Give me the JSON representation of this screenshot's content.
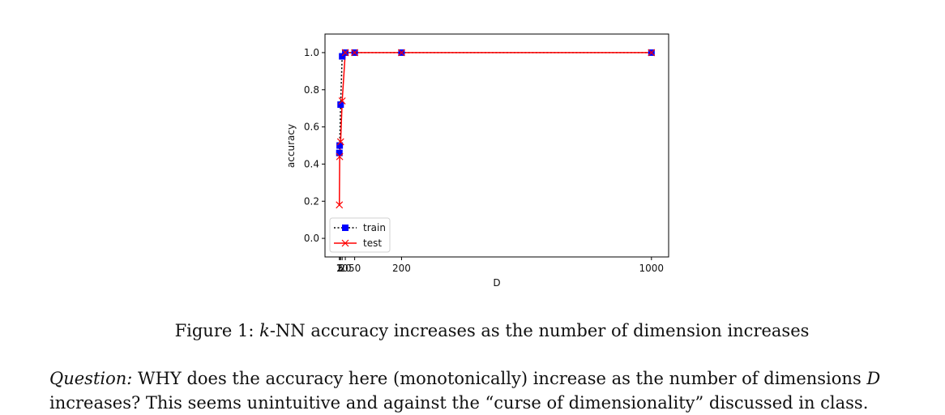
{
  "chart_data": {
    "type": "line",
    "title": "",
    "xlabel": "D",
    "ylabel": "accuracy",
    "xlim": [
      -45,
      1055
    ],
    "ylim": [
      -0.1,
      1.1
    ],
    "xticks": [
      {
        "value": 1,
        "label": "1"
      },
      {
        "value": 2,
        "label": "2"
      },
      {
        "value": 5,
        "label": "5"
      },
      {
        "value": 10,
        "label": "10"
      },
      {
        "value": 20,
        "label": "20"
      },
      {
        "value": 50,
        "label": "50"
      },
      {
        "value": 200,
        "label": "200"
      },
      {
        "value": 1000,
        "label": "1000"
      }
    ],
    "yticks": [
      {
        "value": 0.0,
        "label": "0.0"
      },
      {
        "value": 0.2,
        "label": "0.2"
      },
      {
        "value": 0.4,
        "label": "0.4"
      },
      {
        "value": 0.6,
        "label": "0.6"
      },
      {
        "value": 0.8,
        "label": "0.8"
      },
      {
        "value": 1.0,
        "label": "1.0"
      }
    ],
    "grid": false,
    "legend_position": "lower-left",
    "series": [
      {
        "name": "train",
        "color": "#0000ff",
        "line_color": "#000000",
        "line_style": "dotted",
        "marker": "square",
        "x": [
          1,
          2,
          5,
          10,
          20,
          50,
          200,
          1000
        ],
        "y": [
          0.46,
          0.5,
          0.72,
          0.98,
          1.0,
          1.0,
          1.0,
          1.0
        ]
      },
      {
        "name": "test",
        "color": "#ff0000",
        "line_color": "#ff0000",
        "line_style": "solid",
        "marker": "x",
        "x": [
          1,
          2,
          5,
          10,
          20,
          50,
          200,
          1000
        ],
        "y": [
          0.18,
          0.44,
          0.52,
          0.74,
          1.0,
          1.0,
          1.0,
          1.0
        ]
      }
    ]
  },
  "caption": {
    "prefix": "Figure 1: ",
    "k_italic": "k",
    "text": "-NN accuracy increases as the number of dimension increases"
  },
  "question": {
    "label": "Question:",
    "part1": " WHY does the accuracy here (monotonically) increase as the number of dimensions ",
    "var": "D",
    "part2": " increases? This seems unintuitive and against the “curse of dimensionality” discussed in class."
  }
}
